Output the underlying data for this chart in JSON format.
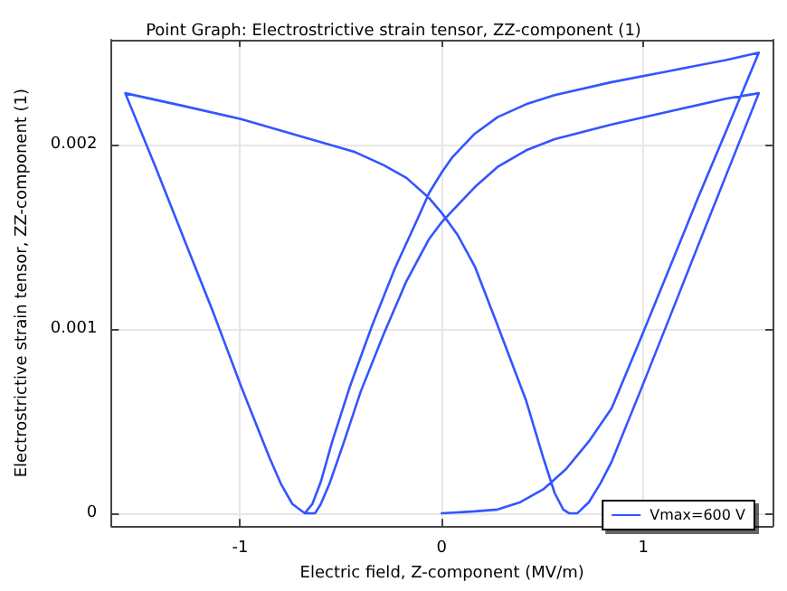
{
  "chart_data": {
    "type": "line",
    "title": "Point Graph: Electrostrictive strain tensor, ZZ-component (1)",
    "xlabel": "Electric field, Z-component (MV/m)",
    "ylabel": "Electrostrictive strain tensor, ZZ-component (1)",
    "xlim": [
      -1.638,
      1.641
    ],
    "ylim": [
      -7e-05,
      0.00257
    ],
    "xticks": [
      -1,
      0,
      1
    ],
    "yticks": [
      0,
      0.001,
      0.002
    ],
    "grid": true,
    "legend": "bottom right",
    "marker": "none",
    "line_style": "solid",
    "series": [
      {
        "name": "Vmax=600 V",
        "color": "#3355ff",
        "x": [
          0,
          0.164,
          0.277,
          0.39,
          0.504,
          0.617,
          0.73,
          0.843,
          0.984,
          1.126,
          1.267,
          1.409,
          1.573,
          1.409,
          1.126,
          0.843,
          0.56,
          0.419,
          0.277,
          0.164,
          0.051,
          0,
          -0.062,
          -0.119,
          -0.232,
          -0.345,
          -0.458,
          -0.543,
          -0.6,
          -0.642,
          -0.679,
          -0.741,
          -0.798,
          -0.854,
          -0.996,
          -1.137,
          -1.279,
          -1.42,
          -1.57,
          -1.279,
          -0.996,
          -0.713,
          -0.43,
          -0.289,
          -0.175,
          -0.062,
          0,
          0.079,
          0.164,
          0.277,
          0.419,
          0.504,
          0.56,
          0.603,
          0.631,
          0.673,
          0.73,
          0.786,
          0.843,
          0.984,
          1.126,
          1.267,
          1.409,
          1.573,
          1.409,
          1.126,
          0.843,
          0.56,
          0.419,
          0.277,
          0.164,
          0.051,
          0,
          -0.062,
          -0.175,
          -0.289,
          -0.402,
          -0.487,
          -0.557,
          -0.6,
          -0.628,
          -0.679,
          -0.741,
          -0.798,
          -0.854,
          -0.996,
          -1.137,
          -1.279,
          -1.42,
          -1.57
        ],
        "values": [
          0,
          1e-05,
          2e-05,
          6e-05,
          0.00013,
          0.00024,
          0.00039,
          0.00057,
          0.00094,
          0.00132,
          0.0017,
          0.00207,
          0.0025,
          0.00246,
          0.0024,
          0.00234,
          0.00227,
          0.00222,
          0.00215,
          0.00206,
          0.00193,
          0.00185,
          0.00174,
          0.0016,
          0.00133,
          0.00102,
          0.00068,
          0.00039,
          0.00017,
          5e-05,
          0,
          5e-05,
          0.00016,
          0.0003,
          0.00069,
          0.0011,
          0.00149,
          0.00188,
          0.00228,
          0.00221,
          0.00214,
          0.00205,
          0.00196,
          0.00189,
          0.00182,
          0.00171,
          0.00163,
          0.00151,
          0.00134,
          0.00102,
          0.00061,
          0.0003,
          0.00011,
          2e-05,
          0,
          0,
          6e-05,
          0.00016,
          0.00028,
          0.00066,
          0.00105,
          0.00144,
          0.00183,
          0.00228,
          0.00225,
          0.00218,
          0.00211,
          0.00203,
          0.00197,
          0.00188,
          0.00177,
          0.00164,
          0.00158,
          0.00149,
          0.00126,
          0.00097,
          0.00066,
          0.00038,
          0.00016,
          5e-05,
          0,
          0,
          5e-05,
          0.00016,
          0.0003,
          0.00069,
          0.0011,
          0.00149,
          0.00188,
          0.00228
        ]
      }
    ]
  }
}
